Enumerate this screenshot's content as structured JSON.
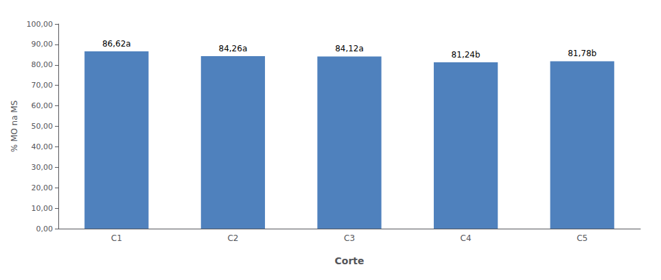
{
  "chart_data": {
    "type": "bar",
    "categories": [
      "C1",
      "C2",
      "C3",
      "C4",
      "C5"
    ],
    "values": [
      86.62,
      84.26,
      84.12,
      81.24,
      81.78
    ],
    "value_labels": [
      "86,62a",
      "84,26a",
      "84,12a",
      "81,24b",
      "81,78b"
    ],
    "data_labels": true,
    "color": "#4f81bd",
    "xlabel": "Corte",
    "ylabel": "% MO na MS",
    "ylim": [
      0,
      100
    ],
    "yticks": [
      {
        "value": 0,
        "label": "0,00"
      },
      {
        "value": 10,
        "label": "10,00"
      },
      {
        "value": 20,
        "label": "20,00"
      },
      {
        "value": 30,
        "label": "30,00"
      },
      {
        "value": 40,
        "label": "40,00"
      },
      {
        "value": 50,
        "label": "50,00"
      },
      {
        "value": 60,
        "label": "60,00"
      },
      {
        "value": 70,
        "label": "70,00"
      },
      {
        "value": 80,
        "label": "80,00"
      },
      {
        "value": 90,
        "label": "90,00"
      },
      {
        "value": 100,
        "label": "100,00"
      }
    ],
    "grid": false
  }
}
